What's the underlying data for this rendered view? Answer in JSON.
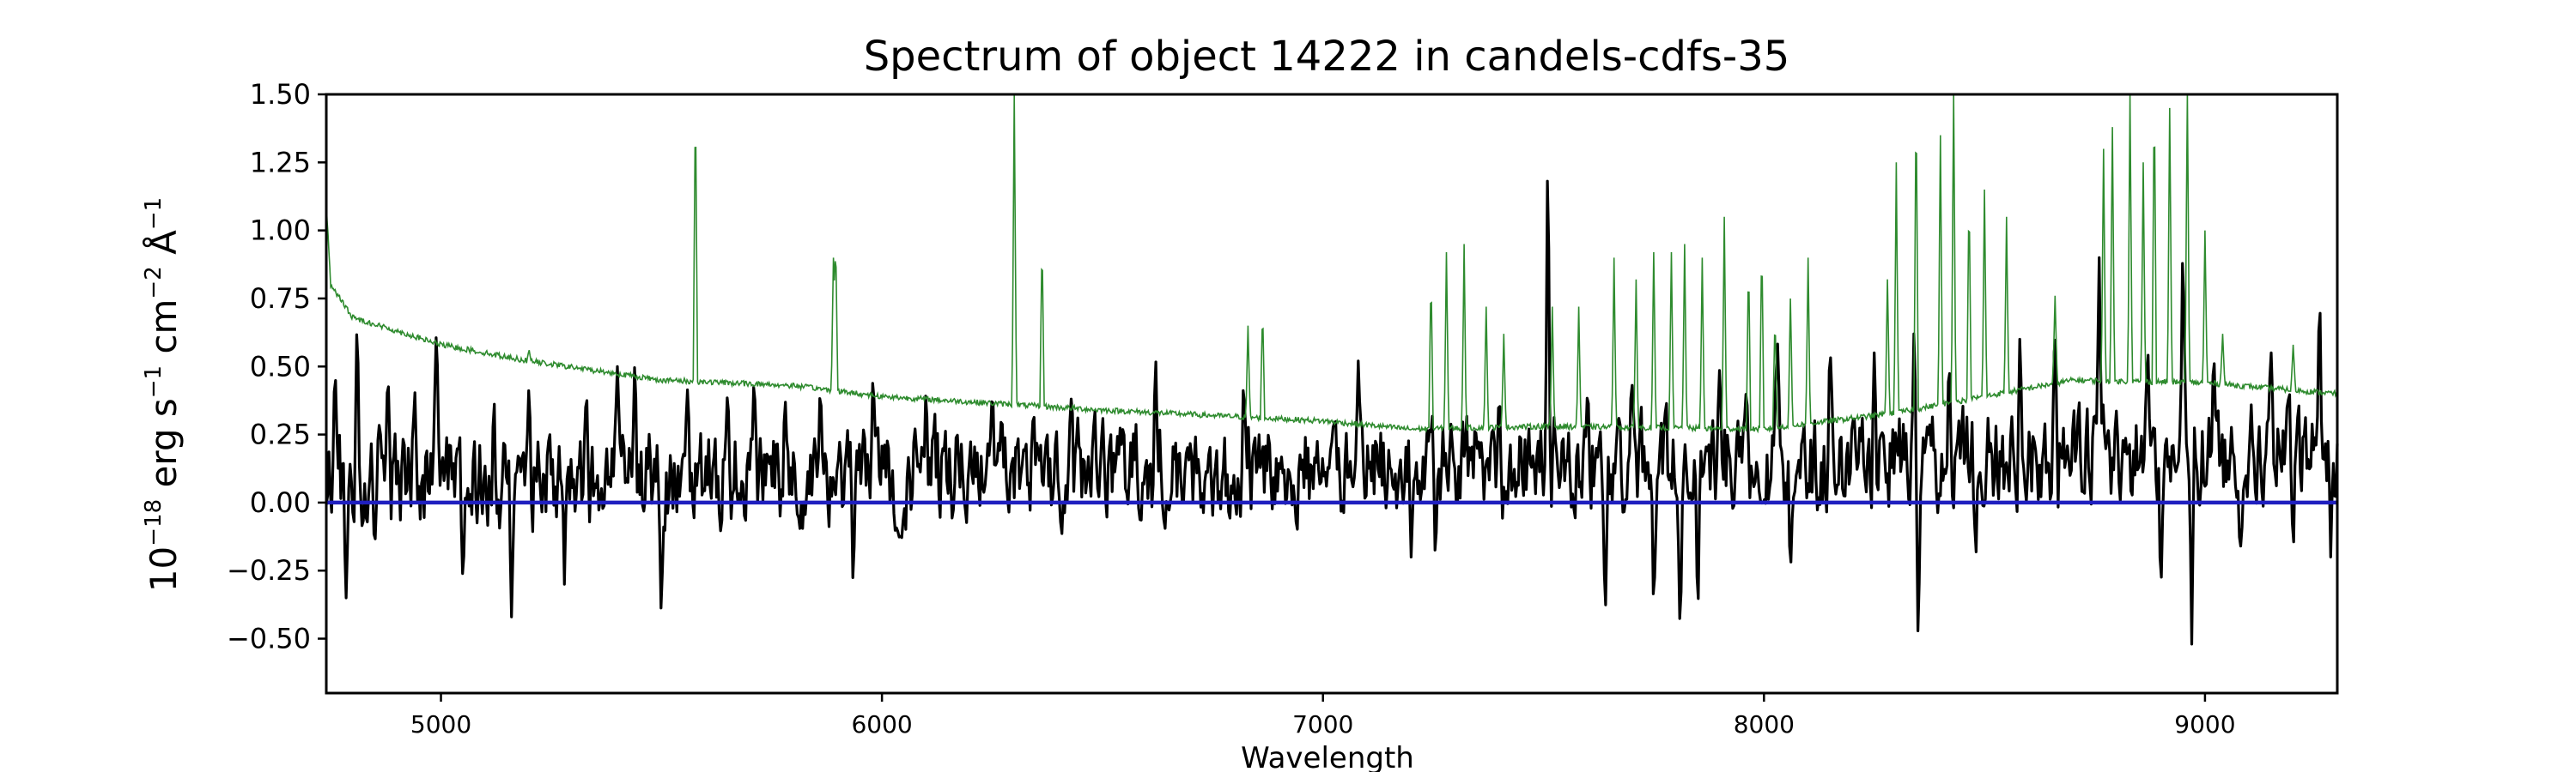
{
  "chart_data": {
    "type": "line",
    "title": "Spectrum of object 14222 in candels-cdfs-35",
    "xlabel": "Wavelength",
    "ylabel": {
      "base": "10",
      "exponent": "−18",
      "units": " erg s",
      "s_exp": "−1",
      "cm": " cm",
      "cm_exp": "−2",
      "angstrom": " Å",
      "a_exp": "−1"
    },
    "xlim": [
      4740,
      9300
    ],
    "ylim": [
      -0.7,
      1.5
    ],
    "xticks": [
      5000,
      6000,
      7000,
      8000,
      9000
    ],
    "xtick_labels": [
      "5000",
      "6000",
      "7000",
      "8000",
      "9000"
    ],
    "yticks": [
      -0.5,
      -0.25,
      0.0,
      0.25,
      0.5,
      0.75,
      1.0,
      1.25,
      1.5
    ],
    "ytick_labels": [
      "−0.50",
      "−0.25",
      "0.00",
      "0.25",
      "0.50",
      "0.75",
      "1.00",
      "1.25",
      "1.50"
    ],
    "grid": false,
    "series": [
      {
        "role": "model",
        "color": "#2e8b2e",
        "continuum": [
          [
            4740,
            1.1
          ],
          [
            4750,
            0.8
          ],
          [
            4800,
            0.68
          ],
          [
            5000,
            0.58
          ],
          [
            5200,
            0.52
          ],
          [
            5500,
            0.45
          ],
          [
            5800,
            0.43
          ],
          [
            6000,
            0.39
          ],
          [
            6300,
            0.36
          ],
          [
            6500,
            0.34
          ],
          [
            7000,
            0.3
          ],
          [
            7200,
            0.27
          ],
          [
            7500,
            0.28
          ],
          [
            8000,
            0.27
          ],
          [
            8300,
            0.33
          ],
          [
            8600,
            0.42
          ],
          [
            8700,
            0.45
          ],
          [
            9000,
            0.44
          ],
          [
            9300,
            0.4
          ]
        ],
        "lines": [
          [
            5200,
            0.56
          ],
          [
            5577,
            1.52
          ],
          [
            5890,
            0.9
          ],
          [
            5895,
            0.98
          ],
          [
            6300,
            1.52
          ],
          [
            6363,
            0.98
          ],
          [
            6830,
            0.65
          ],
          [
            6863,
            0.72
          ],
          [
            7245,
            0.85
          ],
          [
            7280,
            0.92
          ],
          [
            7320,
            0.95
          ],
          [
            7370,
            0.72
          ],
          [
            7410,
            0.62
          ],
          [
            7520,
            0.72
          ],
          [
            7580,
            0.72
          ],
          [
            7660,
            0.9
          ],
          [
            7710,
            0.82
          ],
          [
            7750,
            0.92
          ],
          [
            7790,
            0.92
          ],
          [
            7820,
            0.95
          ],
          [
            7860,
            0.9
          ],
          [
            7910,
            1.05
          ],
          [
            7965,
            0.9
          ],
          [
            7995,
            0.97
          ],
          [
            8025,
            0.7
          ],
          [
            8060,
            0.75
          ],
          [
            8100,
            0.9
          ],
          [
            8280,
            0.82
          ],
          [
            8300,
            1.25
          ],
          [
            8345,
            1.52
          ],
          [
            8400,
            1.35
          ],
          [
            8430,
            1.52
          ],
          [
            8465,
            1.15
          ],
          [
            8500,
            1.15
          ],
          [
            8550,
            1.05
          ],
          [
            8660,
            0.76
          ],
          [
            8770,
            1.3
          ],
          [
            8790,
            1.38
          ],
          [
            8830,
            1.52
          ],
          [
            8860,
            1.25
          ],
          [
            8885,
            1.52
          ],
          [
            8920,
            1.45
          ],
          [
            8960,
            1.52
          ],
          [
            9000,
            1.0
          ],
          [
            9040,
            0.62
          ],
          [
            9200,
            0.58
          ]
        ]
      },
      {
        "role": "observed",
        "color": "#000000",
        "peaks": [
          [
            4760,
            0.5
          ],
          [
            4785,
            -0.35
          ],
          [
            4810,
            0.71
          ],
          [
            4850,
            -0.2
          ],
          [
            4880,
            0.5
          ],
          [
            4940,
            0.45
          ],
          [
            4990,
            0.67
          ],
          [
            5050,
            -0.3
          ],
          [
            5120,
            0.45
          ],
          [
            5160,
            -0.42
          ],
          [
            5200,
            0.46
          ],
          [
            5280,
            -0.3
          ],
          [
            5330,
            0.45
          ],
          [
            5400,
            0.5
          ],
          [
            5440,
            0.55
          ],
          [
            5500,
            -0.45
          ],
          [
            5560,
            0.45
          ],
          [
            5650,
            0.45
          ],
          [
            5710,
            0.47
          ],
          [
            5780,
            0.45
          ],
          [
            5860,
            0.45
          ],
          [
            5935,
            -0.38
          ],
          [
            5980,
            0.5
          ],
          [
            6100,
            0.45
          ],
          [
            6250,
            0.45
          ],
          [
            6430,
            0.45
          ],
          [
            6620,
            0.59
          ],
          [
            6820,
            0.5
          ],
          [
            7080,
            0.52
          ],
          [
            7200,
            -0.2
          ],
          [
            7255,
            -0.25
          ],
          [
            7400,
            0.42
          ],
          [
            7510,
            1.42
          ],
          [
            7600,
            0.45
          ],
          [
            7640,
            -0.5
          ],
          [
            7700,
            0.45
          ],
          [
            7750,
            -0.45
          ],
          [
            7810,
            -0.52
          ],
          [
            7850,
            -0.42
          ],
          [
            7900,
            0.55
          ],
          [
            7960,
            0.47
          ],
          [
            8030,
            0.65
          ],
          [
            8060,
            -0.27
          ],
          [
            8150,
            0.6
          ],
          [
            8250,
            0.55
          ],
          [
            8340,
            0.62
          ],
          [
            8350,
            -0.6
          ],
          [
            8420,
            0.55
          ],
          [
            8480,
            -0.25
          ],
          [
            8580,
            0.6
          ],
          [
            8660,
            0.7
          ],
          [
            8760,
            0.9
          ],
          [
            8870,
            0.65
          ],
          [
            8900,
            -0.35
          ],
          [
            8950,
            1.0
          ],
          [
            8970,
            -0.52
          ],
          [
            9020,
            0.6
          ],
          [
            9080,
            -0.2
          ],
          [
            9150,
            0.55
          ],
          [
            9200,
            -0.2
          ],
          [
            9260,
            0.82
          ],
          [
            9285,
            -0.2
          ]
        ]
      },
      {
        "role": "zero",
        "color": "#1f1fbf",
        "y": 0.0
      }
    ]
  }
}
